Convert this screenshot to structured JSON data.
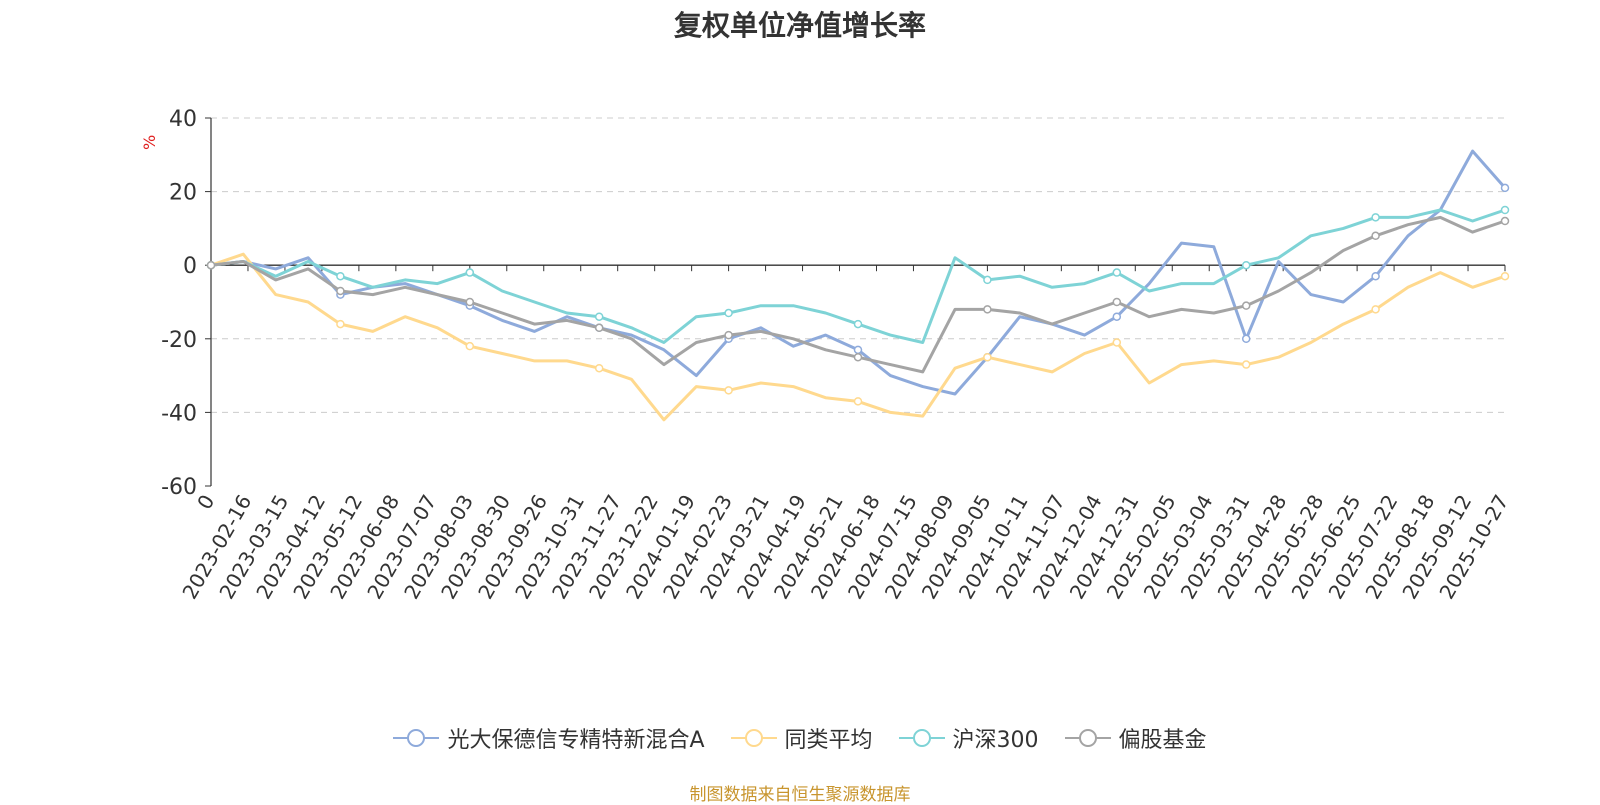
{
  "chart_data": {
    "type": "line",
    "title": "复权单位净值增长率",
    "ylabel": "%",
    "ylim": [
      -60,
      40
    ],
    "yticks": [
      40,
      20,
      0,
      -20,
      -40,
      -60
    ],
    "grid": true,
    "legend_position": "bottom",
    "x_tick_labels": [
      "0",
      "2023-02-16",
      "2023-03-15",
      "2023-04-12",
      "2023-05-12",
      "2023-06-08",
      "2023-07-07",
      "2023-08-03",
      "2023-08-30",
      "2023-09-26",
      "2023-10-31",
      "2023-11-27",
      "2023-12-22",
      "2024-01-19",
      "2024-02-23",
      "2024-03-21",
      "2024-04-19",
      "2024-05-21",
      "2024-06-18",
      "2024-07-15",
      "2024-08-09",
      "2024-09-05",
      "2024-10-11",
      "2024-11-07",
      "2024-12-04",
      "2024-12-31",
      "2025-02-05",
      "2025-03-04",
      "2025-03-31",
      "2025-04-28",
      "2025-05-28",
      "2025-06-25",
      "2025-07-22",
      "2025-08-18",
      "2025-09-12",
      "2025-10-27"
    ],
    "series": [
      {
        "name": "光大保德信专精特新混合A",
        "color": "#8eaadb",
        "values": [
          0,
          1,
          -1,
          2,
          -8,
          -6,
          -5,
          -8,
          -11,
          -15,
          -18,
          -14,
          -17,
          -19,
          -23,
          -30,
          -20,
          -17,
          -22,
          -19,
          -23,
          -30,
          -33,
          -35,
          -25,
          -14,
          -16,
          -19,
          -14,
          -5,
          6,
          5,
          -20,
          1,
          -8,
          -10,
          -3,
          8,
          15,
          31,
          21
        ]
      },
      {
        "name": "同类平均",
        "color": "#ffd98e",
        "values": [
          0,
          3,
          -8,
          -10,
          -16,
          -18,
          -14,
          -17,
          -22,
          -24,
          -26,
          -26,
          -28,
          -31,
          -42,
          -33,
          -34,
          -32,
          -33,
          -36,
          -37,
          -40,
          -41,
          -28,
          -25,
          -27,
          -29,
          -24,
          -21,
          -32,
          -27,
          -26,
          -27,
          -25,
          -21,
          -16,
          -12,
          -6,
          -2,
          -6,
          -3
        ]
      },
      {
        "name": "沪深300",
        "color": "#7ed3d6",
        "values": [
          0,
          1,
          -3,
          1,
          -3,
          -6,
          -4,
          -5,
          -2,
          -7,
          -10,
          -13,
          -14,
          -17,
          -21,
          -14,
          -13,
          -11,
          -11,
          -13,
          -16,
          -19,
          -21,
          2,
          -4,
          -3,
          -6,
          -5,
          -2,
          -7,
          -5,
          -5,
          0,
          2,
          8,
          10,
          13,
          13,
          15,
          12,
          15
        ]
      },
      {
        "name": "偏股基金",
        "color": "#a4a4a4",
        "values": [
          0,
          1,
          -4,
          -1,
          -7,
          -8,
          -6,
          -8,
          -10,
          -13,
          -16,
          -15,
          -17,
          -20,
          -27,
          -21,
          -19,
          -18,
          -20,
          -23,
          -25,
          -27,
          -29,
          -12,
          -12,
          -13,
          -16,
          -13,
          -10,
          -14,
          -12,
          -13,
          -11,
          -7,
          -2,
          4,
          8,
          11,
          13,
          9,
          12
        ]
      }
    ]
  },
  "footer": {
    "source": "制图数据来自恒生聚源数据库"
  }
}
